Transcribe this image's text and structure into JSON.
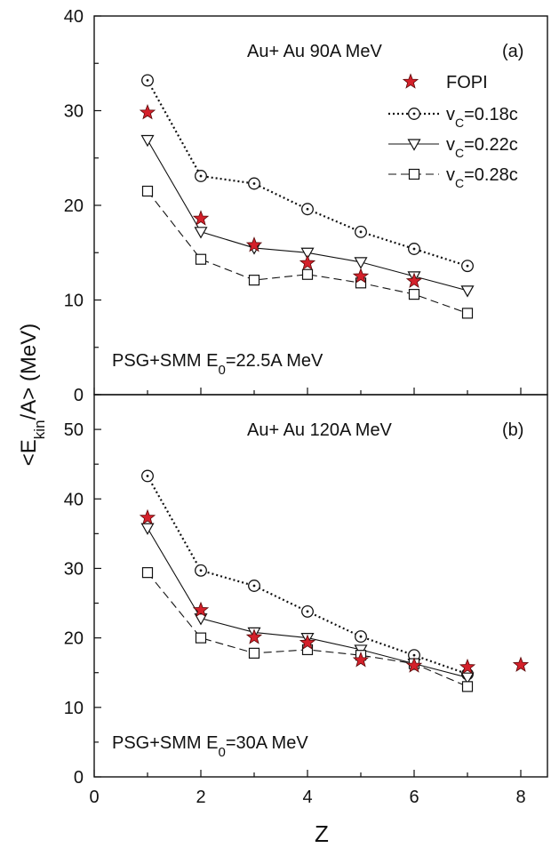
{
  "chart_data": [
    {
      "type": "line",
      "panel_label": "(a)",
      "title": "Au+ Au  90A MeV",
      "annotation": {
        "pre": "PSG+SMM E",
        "sub": "0",
        "post": "=22.5A MeV"
      },
      "ylim": [
        0,
        40
      ],
      "yticks": [
        0,
        10,
        20,
        30,
        40
      ],
      "x": [
        1,
        2,
        3,
        4,
        5,
        6,
        7
      ],
      "legend": {
        "placement": "top-right"
      },
      "series": [
        {
          "name": "FOPI",
          "marker": "star",
          "line": "none",
          "color": "#d4202a",
          "x": [
            1,
            2,
            3,
            4,
            5,
            6
          ],
          "values": [
            29.8,
            18.6,
            15.8,
            13.9,
            12.5,
            12.0
          ]
        },
        {
          "name": {
            "pre": "v",
            "sub": "C",
            "post": "=0.18c"
          },
          "marker": "circle-dot",
          "line": "dotted",
          "color": "#111111",
          "x": [
            1,
            2,
            3,
            4,
            5,
            6,
            7
          ],
          "values": [
            33.2,
            23.1,
            22.3,
            19.6,
            17.2,
            15.4,
            13.6
          ]
        },
        {
          "name": {
            "pre": "v",
            "sub": "C",
            "post": "=0.22c"
          },
          "marker": "triangle-down",
          "line": "solid",
          "color": "#111111",
          "x": [
            1,
            2,
            3,
            4,
            5,
            6,
            7
          ],
          "values": [
            26.9,
            17.2,
            15.5,
            15.0,
            14.0,
            12.5,
            11.0
          ]
        },
        {
          "name": {
            "pre": "v",
            "sub": "C",
            "post": "=0.28c"
          },
          "marker": "square",
          "line": "dashed",
          "color": "#111111",
          "x": [
            1,
            2,
            3,
            4,
            5,
            6,
            7
          ],
          "values": [
            21.5,
            14.3,
            12.1,
            12.7,
            11.8,
            10.6,
            8.6
          ]
        }
      ]
    },
    {
      "type": "line",
      "panel_label": "(b)",
      "title": "Au+ Au  120A MeV",
      "annotation": {
        "pre": "PSG+SMM E",
        "sub": "0",
        "post": "=30A MeV"
      },
      "ylim": [
        0,
        55
      ],
      "yticks": [
        0,
        10,
        20,
        30,
        40,
        50
      ],
      "x": [
        1,
        2,
        3,
        4,
        5,
        6,
        7,
        8
      ],
      "series": [
        {
          "name": "FOPI",
          "marker": "star",
          "line": "none",
          "color": "#d4202a",
          "x": [
            1,
            2,
            3,
            4,
            5,
            6,
            7,
            8
          ],
          "values": [
            37.3,
            24.0,
            20.1,
            19.3,
            16.8,
            16.0,
            15.8,
            16.1
          ]
        },
        {
          "name": {
            "pre": "v",
            "sub": "C",
            "post": "=0.18c"
          },
          "marker": "circle-dot",
          "line": "dotted",
          "color": "#111111",
          "x": [
            1,
            2,
            3,
            4,
            5,
            6,
            7
          ],
          "values": [
            43.3,
            29.7,
            27.5,
            23.8,
            20.2,
            17.5,
            14.8
          ]
        },
        {
          "name": {
            "pre": "v",
            "sub": "C",
            "post": "=0.22c"
          },
          "marker": "triangle-down",
          "line": "solid",
          "color": "#111111",
          "x": [
            1,
            2,
            3,
            4,
            5,
            6,
            7
          ],
          "values": [
            35.8,
            22.8,
            20.8,
            20.0,
            18.3,
            16.3,
            14.3
          ]
        },
        {
          "name": {
            "pre": "v",
            "sub": "C",
            "post": "=0.28c"
          },
          "marker": "square",
          "line": "dashed",
          "color": "#111111",
          "x": [
            1,
            2,
            3,
            4,
            5,
            6,
            7
          ],
          "values": [
            29.4,
            20.0,
            17.8,
            18.3,
            17.5,
            16.3,
            13.0
          ]
        }
      ]
    }
  ],
  "x_axis": {
    "label": "Z",
    "xlim": [
      0,
      8.5
    ],
    "ticks": [
      0,
      2,
      4,
      6,
      8
    ]
  },
  "y_axis": {
    "label_pre": "<E",
    "label_sub": "kin",
    "label_post": "/A> (MeV)"
  }
}
